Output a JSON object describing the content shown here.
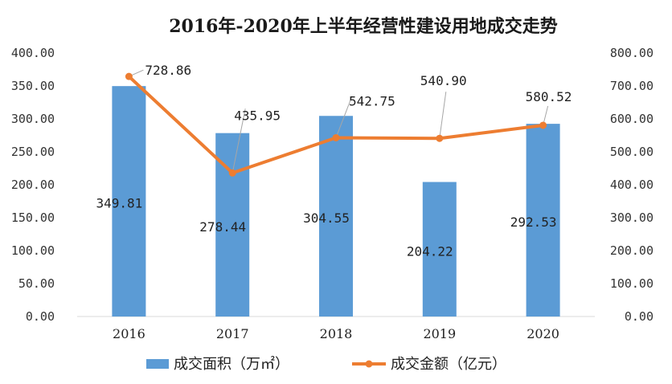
{
  "chart_data": {
    "type": "bar",
    "title": "2016年-2020年上半年经营性建设用地成交走势",
    "categories": [
      "2016",
      "2017",
      "2018",
      "2019",
      "2020"
    ],
    "series": [
      {
        "name": "成交面积（万㎡）",
        "type": "bar",
        "axis": "left",
        "color": "#5b9bd5",
        "values": [
          349.81,
          278.44,
          304.55,
          204.22,
          292.53
        ],
        "labels": [
          "349.81",
          "278.44",
          "304.55",
          "204.22",
          "292.53"
        ]
      },
      {
        "name": "成交金额（亿元）",
        "type": "line",
        "axis": "right",
        "color": "#ed7d31",
        "values": [
          728.86,
          435.95,
          542.75,
          540.9,
          580.52
        ],
        "labels": [
          "728.86",
          "435.95",
          "542.75",
          "540.90",
          "580.52"
        ]
      }
    ],
    "y_left": {
      "range": [
        0,
        400
      ],
      "ticks": [
        "0.00",
        "50.00",
        "100.00",
        "150.00",
        "200.00",
        "250.00",
        "300.00",
        "350.00",
        "400.00"
      ]
    },
    "y_right": {
      "range": [
        0,
        800
      ],
      "ticks": [
        "0.00",
        "100.00",
        "200.00",
        "300.00",
        "400.00",
        "500.00",
        "600.00",
        "700.00",
        "800.00"
      ]
    },
    "grid": false,
    "legend_position": "bottom"
  }
}
